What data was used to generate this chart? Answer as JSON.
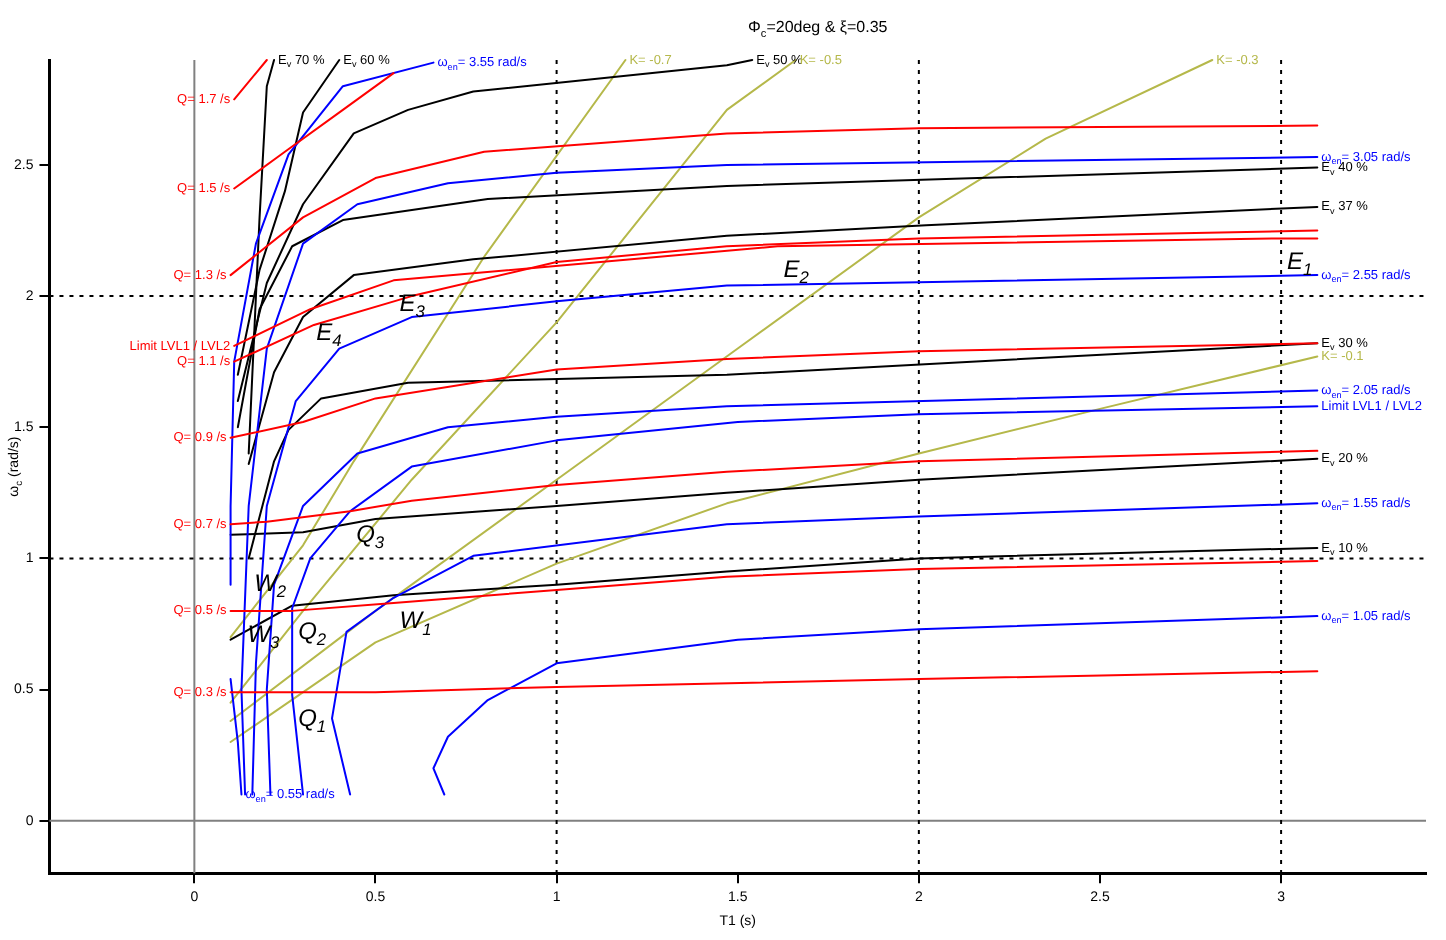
{
  "chart_data": {
    "type": "line",
    "title": "Φ$_{c}$=20deg & ξ=0.35",
    "xlabel": "T1 (s)",
    "ylabel": "ω$_{c}$ (rad/s)",
    "xlim": [
      -0.4,
      3.4
    ],
    "ylim": [
      -0.2,
      2.9
    ],
    "xticks": [
      0,
      0.5,
      1,
      1.5,
      2,
      2.5,
      3
    ],
    "yticks": [
      0,
      0.5,
      1,
      1.5,
      2,
      2.5
    ],
    "grid": false,
    "legend": false,
    "marker": "none",
    "line_style": "solid",
    "ref_lines": [
      {
        "axis": "x",
        "value": 0,
        "color": "#808080",
        "line_style": "solid"
      },
      {
        "axis": "y",
        "value": 0,
        "color": "#808080",
        "line_style": "solid"
      },
      {
        "axis": "x",
        "value": 1,
        "color": "#000000",
        "line_style": "dotted"
      },
      {
        "axis": "x",
        "value": 2,
        "color": "#000000",
        "line_style": "dotted"
      },
      {
        "axis": "x",
        "value": 3,
        "color": "#000000",
        "line_style": "dotted"
      },
      {
        "axis": "y",
        "value": 1,
        "color": "#000000",
        "line_style": "dotted"
      },
      {
        "axis": "y",
        "value": 2,
        "color": "#000000",
        "line_style": "dotted"
      }
    ],
    "series": [
      {
        "name": "Q= 0.3 /s",
        "color": "#ff0000",
        "x": [
          3.1,
          2,
          1,
          0.5,
          0.27,
          0.1
        ],
        "values": [
          0.57,
          0.54,
          0.51,
          0.49,
          0.49,
          0.49
        ]
      },
      {
        "name": "Q= 0.5 /s",
        "color": "#ff0000",
        "x": [
          3.1,
          2,
          1.47,
          1,
          0.55,
          0.27,
          0.13,
          0.1
        ],
        "values": [
          0.99,
          0.96,
          0.93,
          0.88,
          0.83,
          0.8,
          0.8,
          0.8
        ]
      },
      {
        "name": "Q= 0.7 /s",
        "color": "#ff0000",
        "x": [
          3.1,
          2,
          1.47,
          1,
          0.6,
          0.43,
          0.2,
          0.1
        ],
        "values": [
          1.41,
          1.37,
          1.33,
          1.28,
          1.22,
          1.18,
          1.14,
          1.13
        ]
      },
      {
        "name": "Q= 0.9 /s",
        "color": "#ff0000",
        "x": [
          3.1,
          2,
          1.47,
          1,
          0.5,
          0.3,
          0.1
        ],
        "values": [
          1.82,
          1.79,
          1.76,
          1.72,
          1.61,
          1.52,
          1.46
        ]
      },
      {
        "name": "Q= 1.1 /s",
        "color": "#ff0000",
        "x": [
          3.1,
          2,
          1.47,
          1,
          0.6,
          0.33,
          0.11
        ],
        "values": [
          2.25,
          2.22,
          2.19,
          2.13,
          2.0,
          1.89,
          1.75
        ]
      },
      {
        "name": "Q= 1.3 /s",
        "color": "#ff0000",
        "x": [
          3.1,
          2,
          1.47,
          0.8,
          0.5,
          0.3,
          0.1
        ],
        "values": [
          2.65,
          2.64,
          2.62,
          2.55,
          2.45,
          2.3,
          2.08
        ]
      },
      {
        "name": "Q= 1.5 /s",
        "color": "#ff0000",
        "x": [
          0.55,
          0.41,
          0.25,
          0.11
        ],
        "values": [
          2.85,
          2.71,
          2.55,
          2.41
        ]
      },
      {
        "name": "Q= 1.7 /s",
        "color": "#ff0000",
        "x": [
          0.2,
          0.11
        ],
        "values": [
          2.9,
          2.75
        ]
      },
      {
        "name": "Limit LVL1 / LVL2",
        "color": "#ff0000",
        "x": [
          3.1,
          3.0,
          1.61,
          0.55,
          0.32,
          0.11
        ],
        "values": [
          2.22,
          2.22,
          2.19,
          2.06,
          1.95,
          1.81
        ]
      },
      {
        "name": "ω$_{en}$= 0.55 rad/s",
        "color": "#0000ff",
        "x": [
          0.1,
          0.12,
          0.13
        ],
        "values": [
          0.54,
          0.3,
          0.1
        ]
      },
      {
        "name": "ω$_{en}$= 1.05 rad/s",
        "color": "#0000ff",
        "x": [
          0.69,
          0.66,
          0.7,
          0.81,
          1,
          1.5,
          2,
          3.1
        ],
        "values": [
          0.1,
          0.2,
          0.32,
          0.46,
          0.6,
          0.69,
          0.73,
          0.78
        ]
      },
      {
        "name": "ω$_{en}$= 1.55 rad/s",
        "color": "#0000ff",
        "x": [
          0.43,
          0.38,
          0.42,
          0.55,
          0.77,
          1.47,
          2,
          3.1
        ],
        "values": [
          0.1,
          0.39,
          0.72,
          0.85,
          1.01,
          1.13,
          1.16,
          1.21
        ]
      },
      {
        "name": "Limit LVL1 / LVL2",
        "color": "#0000ff",
        "x": [
          0.3,
          0.27,
          0.27,
          0.32,
          0.43,
          0.6,
          1,
          1.5,
          2,
          3.1
        ],
        "values": [
          0.1,
          0.48,
          0.81,
          1.0,
          1.18,
          1.35,
          1.45,
          1.52,
          1.55,
          1.58
        ]
      },
      {
        "name": "ω$_{en}$= 2.05 rad/s",
        "color": "#0000ff",
        "x": [
          0.21,
          0.2,
          0.22,
          0.3,
          0.45,
          0.7,
          1,
          1.47,
          3.1
        ],
        "values": [
          0.1,
          0.5,
          0.9,
          1.2,
          1.4,
          1.5,
          1.54,
          1.58,
          1.64
        ]
      },
      {
        "name": "ω$_{en}$= 2.55 rad/s",
        "color": "#0000ff",
        "x": [
          0.16,
          0.17,
          0.2,
          0.28,
          0.4,
          0.6,
          1,
          1.47,
          3.1
        ],
        "values": [
          0.1,
          0.6,
          1.2,
          1.6,
          1.8,
          1.92,
          1.98,
          2.04,
          2.08
        ]
      },
      {
        "name": "ω$_{en}$= 3.05 rad/s",
        "color": "#0000ff",
        "x": [
          0.14,
          0.13,
          0.15,
          0.2,
          0.3,
          0.45,
          0.7,
          1,
          1.47,
          3.1
        ],
        "values": [
          0.1,
          0.5,
          1.2,
          1.8,
          2.2,
          2.35,
          2.43,
          2.47,
          2.5,
          2.53
        ]
      },
      {
        "name": "ω$_{en}$= 3.55 rad/s",
        "color": "#0000ff",
        "x": [
          0.1,
          0.1,
          0.11,
          0.17,
          0.26,
          0.41,
          0.66
        ],
        "values": [
          0.9,
          1.2,
          1.75,
          2.2,
          2.54,
          2.8,
          2.89
        ]
      },
      {
        "name": "E$_{v}$ 10 %",
        "color": "#000000",
        "x": [
          0.1,
          0.27,
          0.55,
          1,
          1.47,
          2,
          3.1
        ],
        "values": [
          0.69,
          0.82,
          0.86,
          0.9,
          0.95,
          1.0,
          1.04
        ]
      },
      {
        "name": "E$_{v}$ 20 %",
        "color": "#000000",
        "x": [
          0.1,
          0.3,
          0.5,
          1,
          1.47,
          2,
          3.1
        ],
        "values": [
          1.09,
          1.1,
          1.15,
          1.2,
          1.25,
          1.3,
          1.38
        ]
      },
      {
        "name": "E$_{v}$ 30 %",
        "color": "#000000",
        "x": [
          0.15,
          0.22,
          0.26,
          0.35,
          0.59,
          1.47,
          3.1
        ],
        "values": [
          1.0,
          1.37,
          1.49,
          1.61,
          1.67,
          1.7,
          1.82
        ]
      },
      {
        "name": "E$_{v}$ 37 %",
        "color": "#000000",
        "x": [
          0.15,
          0.22,
          0.3,
          0.44,
          0.77,
          1.47,
          2.02,
          3.1
        ],
        "values": [
          1.36,
          1.71,
          1.92,
          2.08,
          2.14,
          2.23,
          2.27,
          2.34
        ]
      },
      {
        "name": "E$_{v}$ 40 %",
        "color": "#000000",
        "x": [
          0.12,
          0.18,
          0.27,
          0.41,
          0.81,
          1.47,
          3.1
        ],
        "values": [
          1.5,
          1.95,
          2.19,
          2.29,
          2.37,
          2.42,
          2.49
        ]
      },
      {
        "name": "E$_{v}$ 50 %",
        "color": "#000000",
        "x": [
          0.12,
          0.2,
          0.3,
          0.44,
          0.59,
          0.77,
          1.47,
          1.54
        ],
        "values": [
          1.6,
          2.05,
          2.35,
          2.62,
          2.71,
          2.78,
          2.88,
          2.9
        ]
      },
      {
        "name": "E$_{v}$ 60 %",
        "color": "#000000",
        "x": [
          0.12,
          0.18,
          0.25,
          0.3,
          0.4
        ],
        "values": [
          1.7,
          2.1,
          2.4,
          2.7,
          2.9
        ]
      },
      {
        "name": "E$_{v}$ 70 %",
        "color": "#000000",
        "x": [
          0.15,
          0.18,
          0.2,
          0.22
        ],
        "values": [
          1.4,
          2.3,
          2.8,
          2.9
        ]
      },
      {
        "name": "K= -0.1",
        "color": "#b5b84a",
        "x": [
          0.1,
          0.5,
          1,
          1.47,
          2,
          2.5,
          3.1
        ],
        "values": [
          0.3,
          0.68,
          0.98,
          1.21,
          1.4,
          1.57,
          1.77
        ]
      },
      {
        "name": "K= -0.3",
        "color": "#b5b84a",
        "x": [
          0.1,
          0.5,
          1,
          1.5,
          2,
          2.35,
          2.81
        ],
        "values": [
          0.38,
          0.8,
          1.3,
          1.8,
          2.3,
          2.6,
          2.9
        ]
      },
      {
        "name": "K= -0.5",
        "color": "#b5b84a",
        "x": [
          0.1,
          0.3,
          0.6,
          1,
          1.47,
          1.66
        ],
        "values": [
          0.45,
          0.8,
          1.3,
          1.9,
          2.71,
          2.9
        ]
      },
      {
        "name": "K= -0.7",
        "color": "#b5b84a",
        "x": [
          0.1,
          0.3,
          0.44,
          0.8,
          1.19
        ],
        "values": [
          0.7,
          1.05,
          1.37,
          2.15,
          2.9
        ]
      }
    ],
    "annotations": [
      {
        "text": "E$_{1}$",
        "x": 3.0,
        "y": 2.22
      },
      {
        "text": "E$_{2}$",
        "x": 1.61,
        "y": 2.19
      },
      {
        "text": "E$_{3}$",
        "x": 0.55,
        "y": 2.06
      },
      {
        "text": "E$_{4}$",
        "x": 0.32,
        "y": 1.95
      },
      {
        "text": "Q$_{1}$",
        "x": 0.27,
        "y": 0.48
      },
      {
        "text": "Q$_{2}$",
        "x": 0.27,
        "y": 0.81
      },
      {
        "text": "Q$_{3}$",
        "x": 0.43,
        "y": 1.18
      },
      {
        "text": "W$_{1}$",
        "x": 0.55,
        "y": 0.85
      },
      {
        "text": "W$_{2}$",
        "x": 0.27,
        "y": 0.81
      },
      {
        "text": "W$_{3}$",
        "x": 0.13,
        "y": 0.8
      }
    ]
  }
}
